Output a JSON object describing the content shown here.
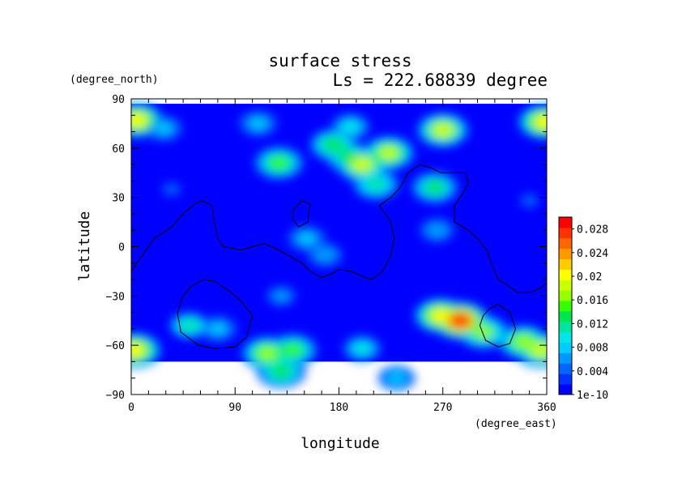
{
  "chart_data": {
    "type": "heatmap",
    "title": "surface stress",
    "subtitle": "Ls = 222.68839 degree",
    "xlabel": "longitude",
    "ylabel": "latitude",
    "x_units": "(degree_east)",
    "y_units": "(degree_north)",
    "xlim": [
      0,
      360
    ],
    "ylim": [
      -90,
      90
    ],
    "x_ticks": [
      "0",
      "90",
      "180",
      "270",
      "360"
    ],
    "y_ticks": [
      "90",
      "60",
      "30",
      "0",
      "−30",
      "−60",
      "−90"
    ],
    "colorbar": {
      "labels": [
        "1e-10",
        "0.004",
        "0.008",
        "0.012",
        "0.016",
        "0.02",
        "0.024",
        "0.028"
      ],
      "min": 0,
      "max": 0.03,
      "colors": [
        "#0000ff",
        "#0033ff",
        "#0066ff",
        "#0099ff",
        "#00ccff",
        "#00e6e6",
        "#00e6a0",
        "#00e64d",
        "#33ff00",
        "#99ff00",
        "#ccff00",
        "#ffff00",
        "#ffcc00",
        "#ff9900",
        "#ff6600",
        "#ff3300",
        "#ff0000"
      ]
    },
    "grid": false,
    "data_extent": {
      "lon": [
        0,
        360
      ],
      "lat": [
        -70,
        87
      ]
    },
    "hotspots": [
      {
        "lon": 5,
        "lat": 77,
        "value": 0.02
      },
      {
        "lon": 358,
        "lat": 76,
        "value": 0.02
      },
      {
        "lon": 270,
        "lat": 71,
        "value": 0.019
      },
      {
        "lon": 28,
        "lat": 72,
        "value": 0.008
      },
      {
        "lon": 110,
        "lat": 75,
        "value": 0.008
      },
      {
        "lon": 190,
        "lat": 73,
        "value": 0.009
      },
      {
        "lon": 175,
        "lat": 62,
        "value": 0.014
      },
      {
        "lon": 188,
        "lat": 55,
        "value": 0.013
      },
      {
        "lon": 200,
        "lat": 50,
        "value": 0.019
      },
      {
        "lon": 223,
        "lat": 57,
        "value": 0.018
      },
      {
        "lon": 212,
        "lat": 38,
        "value": 0.012
      },
      {
        "lon": 128,
        "lat": 51,
        "value": 0.015
      },
      {
        "lon": 263,
        "lat": 36,
        "value": 0.013
      },
      {
        "lon": 265,
        "lat": 10,
        "value": 0.007
      },
      {
        "lon": 152,
        "lat": 5,
        "value": 0.008
      },
      {
        "lon": 168,
        "lat": -5,
        "value": 0.007
      },
      {
        "lon": 285,
        "lat": -45,
        "value": 0.027
      },
      {
        "lon": 268,
        "lat": -42,
        "value": 0.02
      },
      {
        "lon": 305,
        "lat": -52,
        "value": 0.016
      },
      {
        "lon": 340,
        "lat": -58,
        "value": 0.017
      },
      {
        "lon": 355,
        "lat": -63,
        "value": 0.019
      },
      {
        "lon": 3,
        "lat": -63,
        "value": 0.02
      },
      {
        "lon": 118,
        "lat": -65,
        "value": 0.017
      },
      {
        "lon": 140,
        "lat": -63,
        "value": 0.015
      },
      {
        "lon": 130,
        "lat": -76,
        "value": 0.014
      },
      {
        "lon": 50,
        "lat": -48,
        "value": 0.011
      },
      {
        "lon": 75,
        "lat": -50,
        "value": 0.008
      },
      {
        "lon": 130,
        "lat": -30,
        "value": 0.006
      },
      {
        "lon": 200,
        "lat": -62,
        "value": 0.009
      },
      {
        "lon": 230,
        "lat": -80,
        "value": 0.008
      },
      {
        "lon": 35,
        "lat": 35,
        "value": 0.004
      },
      {
        "lon": 345,
        "lat": 28,
        "value": 0.004
      }
    ],
    "contours": [
      [
        [
          0,
          -15
        ],
        [
          10,
          -5
        ],
        [
          20,
          5
        ],
        [
          35,
          12
        ],
        [
          45,
          20
        ],
        [
          55,
          26
        ],
        [
          62,
          28
        ],
        [
          70,
          25
        ],
        [
          72,
          15
        ],
        [
          75,
          5
        ],
        [
          80,
          0
        ],
        [
          95,
          -2
        ],
        [
          105,
          0
        ],
        [
          115,
          2
        ],
        [
          125,
          -1
        ],
        [
          135,
          -5
        ],
        [
          148,
          -10
        ],
        [
          155,
          -15
        ],
        [
          165,
          -19
        ],
        [
          172,
          -17
        ],
        [
          180,
          -14
        ],
        [
          190,
          -15
        ],
        [
          200,
          -18
        ],
        [
          208,
          -20
        ],
        [
          218,
          -15
        ],
        [
          225,
          -5
        ],
        [
          228,
          5
        ],
        [
          225,
          15
        ],
        [
          215,
          25
        ],
        [
          225,
          30
        ],
        [
          232,
          35
        ],
        [
          240,
          45
        ],
        [
          250,
          50
        ],
        [
          260,
          48
        ],
        [
          268,
          45
        ],
        [
          278,
          45
        ],
        [
          290,
          45
        ],
        [
          292,
          38
        ],
        [
          287,
          32
        ],
        [
          280,
          25
        ],
        [
          280,
          15
        ],
        [
          292,
          10
        ],
        [
          300,
          5
        ],
        [
          308,
          -2
        ],
        [
          312,
          -10
        ],
        [
          318,
          -20
        ],
        [
          325,
          -23
        ],
        [
          335,
          -28
        ],
        [
          345,
          -28
        ],
        [
          355,
          -25
        ],
        [
          360,
          -22
        ]
      ],
      [
        [
          63,
          -20
        ],
        [
          72,
          -21
        ],
        [
          85,
          -27
        ],
        [
          95,
          -33
        ],
        [
          105,
          -42
        ],
        [
          100,
          -55
        ],
        [
          90,
          -61
        ],
        [
          72,
          -62
        ],
        [
          58,
          -60
        ],
        [
          43,
          -52
        ],
        [
          40,
          -40
        ],
        [
          45,
          -30
        ],
        [
          52,
          -24
        ],
        [
          63,
          -20
        ]
      ],
      [
        [
          140,
          22
        ],
        [
          148,
          28
        ],
        [
          155,
          26
        ],
        [
          153,
          15
        ],
        [
          145,
          12
        ],
        [
          140,
          17
        ],
        [
          140,
          22
        ]
      ],
      [
        [
          310,
          -38
        ],
        [
          318,
          -35
        ],
        [
          328,
          -40
        ],
        [
          333,
          -50
        ],
        [
          328,
          -59
        ],
        [
          318,
          -61
        ],
        [
          307,
          -57
        ],
        [
          302,
          -48
        ],
        [
          305,
          -42
        ],
        [
          310,
          -38
        ]
      ]
    ]
  }
}
